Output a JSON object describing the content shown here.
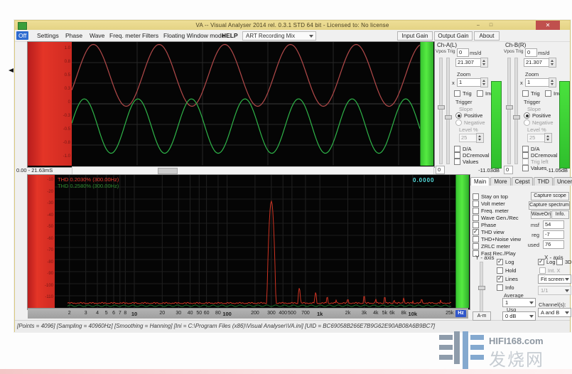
{
  "window": {
    "title": "VA -- Visual Analyser 2014 rel. 0.3.1 STD 64 bit - Licensed to: No license",
    "caption_buttons": {
      "minimize": "–",
      "maximize": "□",
      "close": "✕"
    },
    "menu": {
      "items": [
        "Off",
        "Settings",
        "Phase",
        "Wave",
        "Freq. meter",
        "Filters",
        "Floating Window mode",
        "HELP"
      ],
      "recording_combo": "ART Recording Mix",
      "right_buttons": [
        "Input Gain",
        "Output Gain",
        "About"
      ]
    }
  },
  "scope": {
    "time_range": "0.00 - 21.63mS",
    "y_ticks": [
      "1.0",
      "0.8",
      "0.5",
      "0.3",
      "0",
      "-0.3",
      "-0.5",
      "-0.8",
      "-1.0"
    ]
  },
  "channels": [
    {
      "name": "Ch-A(L)",
      "vpos_trig": "Vpos Trig",
      "msd_value": "0",
      "msd_unit": "ms/d",
      "timebase": "21.307",
      "zoom_label": "Zoom",
      "zoom_prefix": "x",
      "zoom_value": "1",
      "trig": "Trig",
      "inv": "Inv",
      "trigger": "Trigger",
      "slope": "Slope",
      "positive": "Positive",
      "positive_checked": true,
      "negative": "Negative",
      "level": "Level %",
      "level_value": "25",
      "checks": [
        "D/A",
        "DCremoval",
        "Values"
      ],
      "zero": "0",
      "db": "-11.03dB"
    },
    {
      "name": "Ch-B(R)",
      "vpos_trig": "Vpos Trig",
      "msd_value": "0",
      "msd_unit": "ms/d",
      "timebase": "21.307",
      "zoom_label": "Zoom",
      "zoom_prefix": "x",
      "zoom_value": "1",
      "trig": "Trig",
      "inv": "Inv",
      "trigger": "Trigger",
      "slope": "Slope",
      "positive": "Positive",
      "positive_checked": true,
      "negative": "Negative",
      "level": "Level %",
      "level_value": "25",
      "checks": [
        "D/A",
        "DCremoval",
        "Trig left",
        "Values"
      ],
      "zero": "0",
      "db": "-11.05dB"
    }
  ],
  "spectrum": {
    "thd_a": "THD 0.2030% (300.00Hz)",
    "thd_b": "THD 0.2580% (300.00Hz)",
    "counter": "0.0000",
    "unit": "Hz",
    "y_ticks": [
      "-10",
      "-20",
      "-30",
      "-40",
      "-50",
      "-60",
      "-70",
      "-80",
      "-90",
      "-100",
      "-110"
    ]
  },
  "panel": {
    "tabs": [
      "Main",
      "More",
      "Cepst",
      "THD",
      "Uncert"
    ],
    "checks": [
      {
        "label": "Stay on top",
        "checked": false
      },
      {
        "label": "Volt meter",
        "checked": false
      },
      {
        "label": "Freq. meter",
        "checked": false
      },
      {
        "label": "Wave Gen./Rec",
        "checked": false
      },
      {
        "label": "Phase",
        "checked": false
      },
      {
        "label": "THD view",
        "checked": true
      },
      {
        "label": "THD+Noise view",
        "checked": false
      },
      {
        "label": "ZRLC meter",
        "checked": false
      },
      {
        "label": "Fast Rec./Play",
        "checked": false
      }
    ],
    "buttons": {
      "capture_scope": "Capture scope",
      "capture_spectrum": "Capture spectrum",
      "wave_on": "WaveOn",
      "info": "Info."
    },
    "fields": [
      {
        "label": "msf",
        "value": "54"
      },
      {
        "label": "reg",
        "value": "-7"
      },
      {
        "label": "used",
        "value": "76"
      }
    ],
    "y_axis": {
      "title": "Y - axis",
      "log": "Log",
      "log_checked": true,
      "hold": "Hold",
      "hold_checked": false,
      "lines": "Lines",
      "lines_checked": true,
      "info": "Info",
      "info_checked": false,
      "average_label": "Average",
      "average_value": "1",
      "usg_label": "Usg",
      "db_value": "0 dB",
      "am_button": "A-m"
    },
    "x_axis": {
      "title": "X - axis",
      "log": "Log",
      "log_checked": true,
      "threed": "3D",
      "threed_checked": false,
      "intx": "Int. X",
      "fit_value": "Fit screen",
      "ratio_value": "1/1",
      "channels_label": "Channel(s):",
      "channels_value": "A and B"
    }
  },
  "statusbar": "[Points = 4096]  [Sampling = 40960Hz]  [Smoothing = Hanning]  [Ini = C:\\Program Files (x86)\\Visual Analyser\\VA.ini]  [UID = BC69058B266E7B9G62E90AB08A6B9BC7]",
  "watermark": {
    "site": "HIFI168.com",
    "name": "发烧网"
  },
  "colors": {
    "accent_red": "#d83a3a",
    "accent_green": "#3cd23c",
    "wave_red": "#b34a4a",
    "wave_green": "#2fb549",
    "counter_cyan": "#55e0e0"
  },
  "chart_data": [
    {
      "type": "line",
      "name": "oscilloscope-traces",
      "x_range_ms": [
        0,
        21.63
      ],
      "series": [
        {
          "name": "Ch-A",
          "color": "#b34a4a",
          "cycles": 5.3,
          "amplitude_frac": 0.25,
          "center_frac": 0.27,
          "phase": -0.5
        },
        {
          "name": "Ch-B",
          "color": "#2fb549",
          "cycles": 6.5,
          "amplitude_frac": 0.22,
          "center_frac": 0.68,
          "phase": 0.1
        }
      ]
    },
    {
      "type": "line",
      "name": "spectrum-analyzer",
      "x_log": true,
      "xmin_hz": 2,
      "xmax_hz": 25000,
      "y_unit": "dB",
      "fundamental": {
        "hz": 300,
        "db": 0
      },
      "harmonics": [
        {
          "hz": 600,
          "db": -80
        },
        {
          "hz": 900,
          "db": -84
        },
        {
          "hz": 1200,
          "db": -88
        },
        {
          "hz": 1500,
          "db": -91
        },
        {
          "hz": 2000,
          "db": -90
        },
        {
          "hz": 3000,
          "db": -87
        },
        {
          "hz": 4000,
          "db": -90
        },
        {
          "hz": 5000,
          "db": -88
        },
        {
          "hz": 6300,
          "db": -91
        },
        {
          "hz": 8000,
          "db": -89
        },
        {
          "hz": 10000,
          "db": -92
        },
        {
          "hz": 12500,
          "db": -90
        },
        {
          "hz": 16000,
          "db": -93
        },
        {
          "hz": 20000,
          "db": -91
        }
      ],
      "noise_floor_db": -95,
      "x_ticks": [
        "2",
        "3",
        "4",
        "5",
        "6",
        "7",
        "8",
        "10",
        "20",
        "30",
        "40",
        "50",
        "60",
        "80",
        "100",
        "200",
        "300",
        "400",
        "500",
        "700",
        "1k",
        "2k",
        "3k",
        "4k",
        "5k",
        "6k",
        "8k",
        "10k",
        "25k"
      ],
      "bold_ticks": [
        "10",
        "100",
        "1k",
        "10k"
      ]
    }
  ]
}
